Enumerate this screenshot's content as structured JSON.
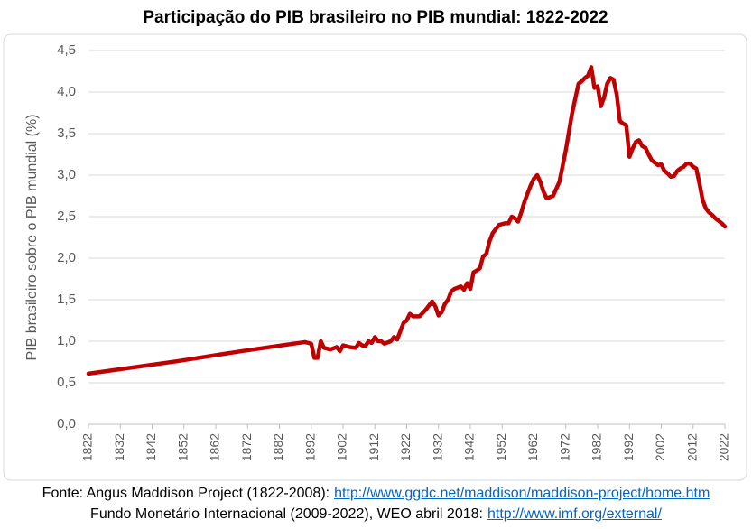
{
  "chart_data": {
    "type": "line",
    "title": "Participação do PIB brasileiro no PIB mundial: 1822-2022",
    "ylabel": "PIB brasileiro sobre o PIB mundial (%)",
    "color": "#c00000",
    "grid": true,
    "xlim": [
      1822,
      2022
    ],
    "xticks": [
      1822,
      1832,
      1842,
      1852,
      1862,
      1872,
      1882,
      1892,
      1902,
      1912,
      1922,
      1932,
      1942,
      1952,
      1962,
      1972,
      1982,
      1992,
      2002,
      2012,
      2022
    ],
    "ylim": [
      0,
      4.5
    ],
    "yticks": [
      {
        "value": 0,
        "label": "0,0"
      },
      {
        "value": 0.5,
        "label": "0,5"
      },
      {
        "value": 1,
        "label": "1,0"
      },
      {
        "value": 1.5,
        "label": "1,5"
      },
      {
        "value": 2,
        "label": "2,0"
      },
      {
        "value": 2.5,
        "label": "2,5"
      },
      {
        "value": 3,
        "label": "3,0"
      },
      {
        "value": 3.5,
        "label": "3,5"
      },
      {
        "value": 4,
        "label": "4,0"
      },
      {
        "value": 4.5,
        "label": "4,5"
      }
    ],
    "x": [
      1822,
      1850,
      1870,
      1890,
      1892,
      1893,
      1894,
      1895,
      1896,
      1898,
      1900,
      1901,
      1902,
      1904,
      1906,
      1907,
      1908,
      1909,
      1910,
      1911,
      1912,
      1913,
      1914,
      1915,
      1917,
      1918,
      1919,
      1920,
      1921,
      1922,
      1923,
      1924,
      1926,
      1928,
      1930,
      1931,
      1932,
      1933,
      1934,
      1935,
      1936,
      1937,
      1939,
      1940,
      1941,
      1942,
      1943,
      1944,
      1945,
      1946,
      1947,
      1948,
      1949,
      1950,
      1951,
      1953,
      1954,
      1955,
      1956,
      1957,
      1958,
      1959,
      1960,
      1961,
      1962,
      1963,
      1964,
      1965,
      1966,
      1968,
      1970,
      1972,
      1974,
      1976,
      1977,
      1978,
      1979,
      1980,
      1981,
      1982,
      1983,
      1984,
      1985,
      1986,
      1987,
      1988,
      1989,
      1990,
      1991,
      1992,
      1993,
      1994,
      1995,
      1996,
      1997,
      1998,
      1999,
      2000,
      2001,
      2002,
      2003,
      2004,
      2005,
      2006,
      2007,
      2008,
      2009,
      2010,
      2011,
      2012,
      2013,
      2014,
      2015,
      2016,
      2017,
      2018,
      2019,
      2020,
      2021,
      2022
    ],
    "values": [
      0.61,
      0.76,
      0.88,
      0.99,
      0.97,
      0.8,
      0.8,
      1.0,
      0.92,
      0.9,
      0.93,
      0.88,
      0.95,
      0.93,
      0.92,
      0.98,
      0.95,
      0.94,
      1.0,
      0.98,
      1.05,
      1.0,
      1.0,
      0.97,
      1.0,
      1.05,
      1.02,
      1.12,
      1.22,
      1.25,
      1.33,
      1.3,
      1.3,
      1.38,
      1.48,
      1.42,
      1.31,
      1.35,
      1.45,
      1.5,
      1.6,
      1.63,
      1.66,
      1.62,
      1.7,
      1.63,
      1.83,
      1.85,
      1.88,
      2.02,
      2.05,
      2.2,
      2.3,
      2.35,
      2.4,
      2.42,
      2.42,
      2.5,
      2.48,
      2.44,
      2.55,
      2.68,
      2.78,
      2.88,
      2.96,
      3.0,
      2.92,
      2.8,
      2.72,
      2.75,
      2.92,
      3.3,
      3.75,
      4.1,
      4.13,
      4.17,
      4.2,
      4.3,
      4.05,
      4.07,
      3.83,
      3.93,
      4.1,
      4.17,
      4.15,
      3.97,
      3.65,
      3.62,
      3.6,
      3.22,
      3.32,
      3.4,
      3.42,
      3.35,
      3.33,
      3.25,
      3.18,
      3.15,
      3.12,
      3.13,
      3.05,
      3.02,
      2.98,
      2.99,
      3.05,
      3.08,
      3.1,
      3.14,
      3.14,
      3.1,
      3.08,
      2.9,
      2.7,
      2.6,
      2.55,
      2.52,
      2.48,
      2.45,
      2.42,
      2.38
    ],
    "source": [
      {
        "text": "Fonte: Angus Maddison Project (1822-2008):",
        "link": "http://www.ggdc.net/maddison/maddison-project/home.htm"
      },
      {
        "text": "Fundo Monetário Internacional (2009-2022), WEO abril 2018:",
        "link": "http://www.imf.org/external/"
      }
    ]
  }
}
